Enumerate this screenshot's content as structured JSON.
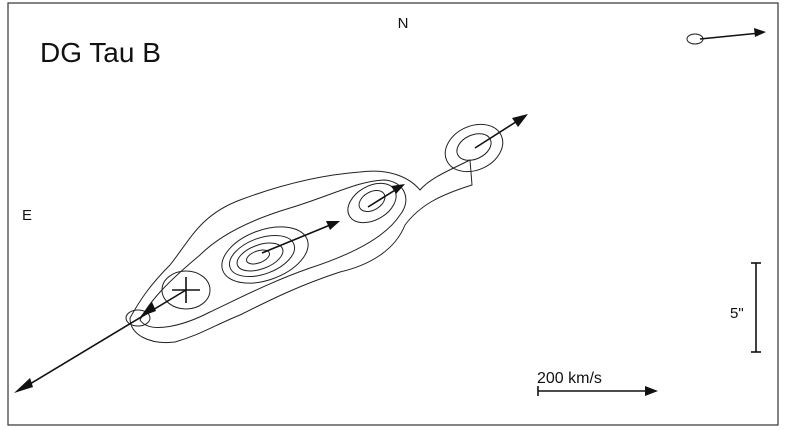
{
  "figure": {
    "title": "DG Tau B",
    "north_label": "N",
    "east_label": "E",
    "angular_scale_label": "5\"",
    "velocity_scale_label": "200 km/s"
  }
}
